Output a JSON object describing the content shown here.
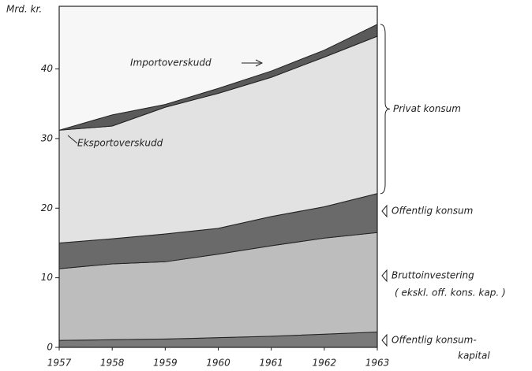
{
  "chart_data": {
    "type": "stacked_area",
    "y_label": "Mrd. kr.",
    "x": [
      1957,
      1958,
      1959,
      1960,
      1961,
      1962,
      1963
    ],
    "xlim": [
      1957,
      1963
    ],
    "xticks": [
      1957,
      1958,
      1959,
      1960,
      1961,
      1962,
      1963
    ],
    "ylim": [
      0,
      49
    ],
    "yticks": [
      0,
      10,
      20,
      30,
      40
    ],
    "series": [
      {
        "name": "Offentlig konsum-",
        "sublabel": "kapital",
        "color": "#7a7a7a",
        "values": [
          1.0,
          1.1,
          1.2,
          1.4,
          1.6,
          1.9,
          2.2
        ]
      },
      {
        "name": "Bruttoinvestering",
        "sublabel": "( ekskl. off. kons. kap. )",
        "color": "#bdbdbd",
        "values": [
          10.3,
          10.9,
          11.1,
          12.0,
          13.0,
          13.8,
          14.3
        ]
      },
      {
        "name": "Offentlig konsum",
        "color": "#6a6a6a",
        "values": [
          3.7,
          3.6,
          4.0,
          3.7,
          4.2,
          4.5,
          5.6
        ]
      },
      {
        "name": "Privat konsum",
        "color": "#e2e2e2",
        "values": [
          16.2,
          16.2,
          18.2,
          19.4,
          20.0,
          21.5,
          22.6
        ]
      },
      {
        "name": "Importoverskudd",
        "color": "#5a5a5a",
        "values": [
          0,
          1.6,
          0.4,
          0.7,
          0.9,
          1.0,
          1.7
        ]
      }
    ],
    "annotations": [
      "Eksportoverskudd"
    ]
  }
}
